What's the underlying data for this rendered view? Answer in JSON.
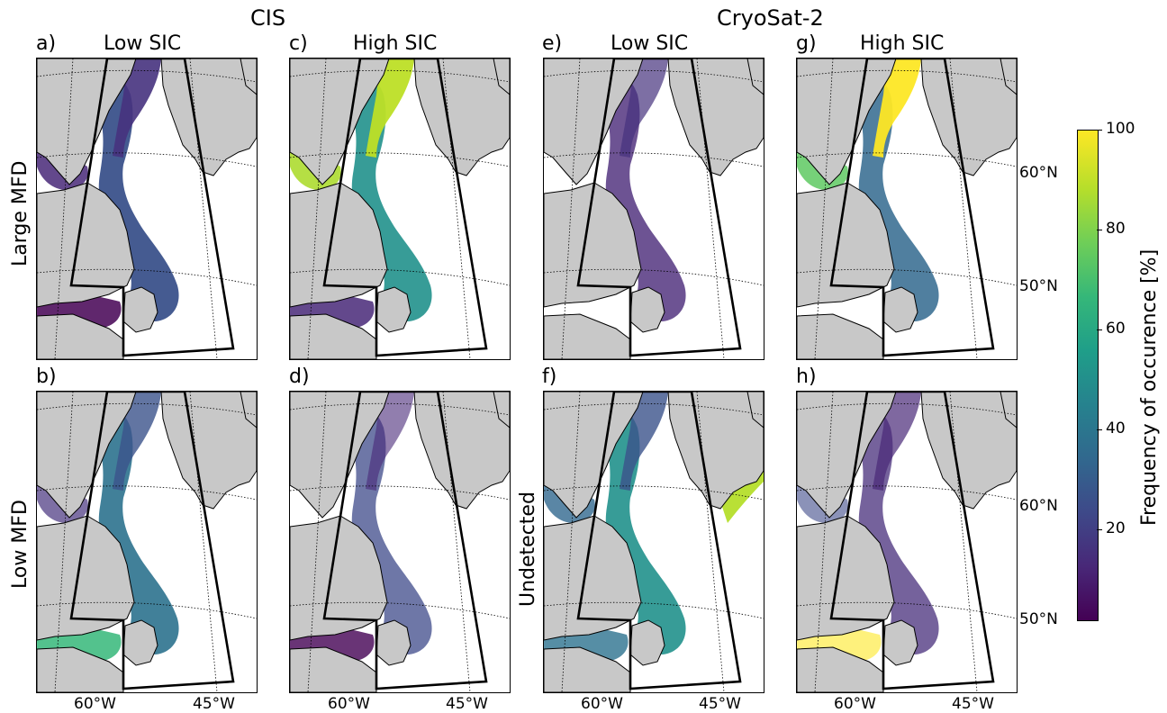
{
  "groups": {
    "cis": "CIS",
    "cryosat": "CryoSat-2"
  },
  "panels": [
    {
      "id": "a",
      "label": "a)",
      "title": "Low SIC",
      "col": 0,
      "row": 0,
      "pattern": "cis-low-large"
    },
    {
      "id": "c",
      "label": "c)",
      "title": "High SIC",
      "col": 1,
      "row": 0,
      "pattern": "cis-high-large"
    },
    {
      "id": "e",
      "label": "e)",
      "title": "Low SIC",
      "col": 2,
      "row": 0,
      "pattern": "cs-low-large"
    },
    {
      "id": "g",
      "label": "g)",
      "title": "High SIC",
      "col": 3,
      "row": 0,
      "pattern": "cs-high-large"
    },
    {
      "id": "b",
      "label": "b)",
      "title": "",
      "col": 0,
      "row": 1,
      "pattern": "cis-low-low"
    },
    {
      "id": "d",
      "label": "d)",
      "title": "",
      "col": 1,
      "row": 1,
      "pattern": "cis-high-low"
    },
    {
      "id": "f",
      "label": "f)",
      "title": "",
      "col": 2,
      "row": 1,
      "pattern": "cs-undetected"
    },
    {
      "id": "h",
      "label": "h)",
      "title": "",
      "col": 3,
      "row": 1,
      "pattern": "cs-high-low"
    }
  ],
  "row_labels": {
    "top": "Large MFD",
    "bottom_left": "Low MFD",
    "bottom_mid": "Undetected"
  },
  "lon_ticks": [
    "60°W",
    "45°W"
  ],
  "lat_ticks": [
    "60°N",
    "50°N"
  ],
  "colorbar": {
    "label": "Frequency of occurence [%]",
    "ticks": [
      "100",
      "80",
      "60",
      "40",
      "20"
    ],
    "tick_values": [
      100,
      80,
      60,
      40,
      20
    ],
    "min": 2,
    "max": 100,
    "colormap": "viridis"
  },
  "colors": {
    "land": "#c8c8c8",
    "ice_low": "#440154",
    "ice_mid": "#21918c",
    "ice_high": "#fde725"
  }
}
